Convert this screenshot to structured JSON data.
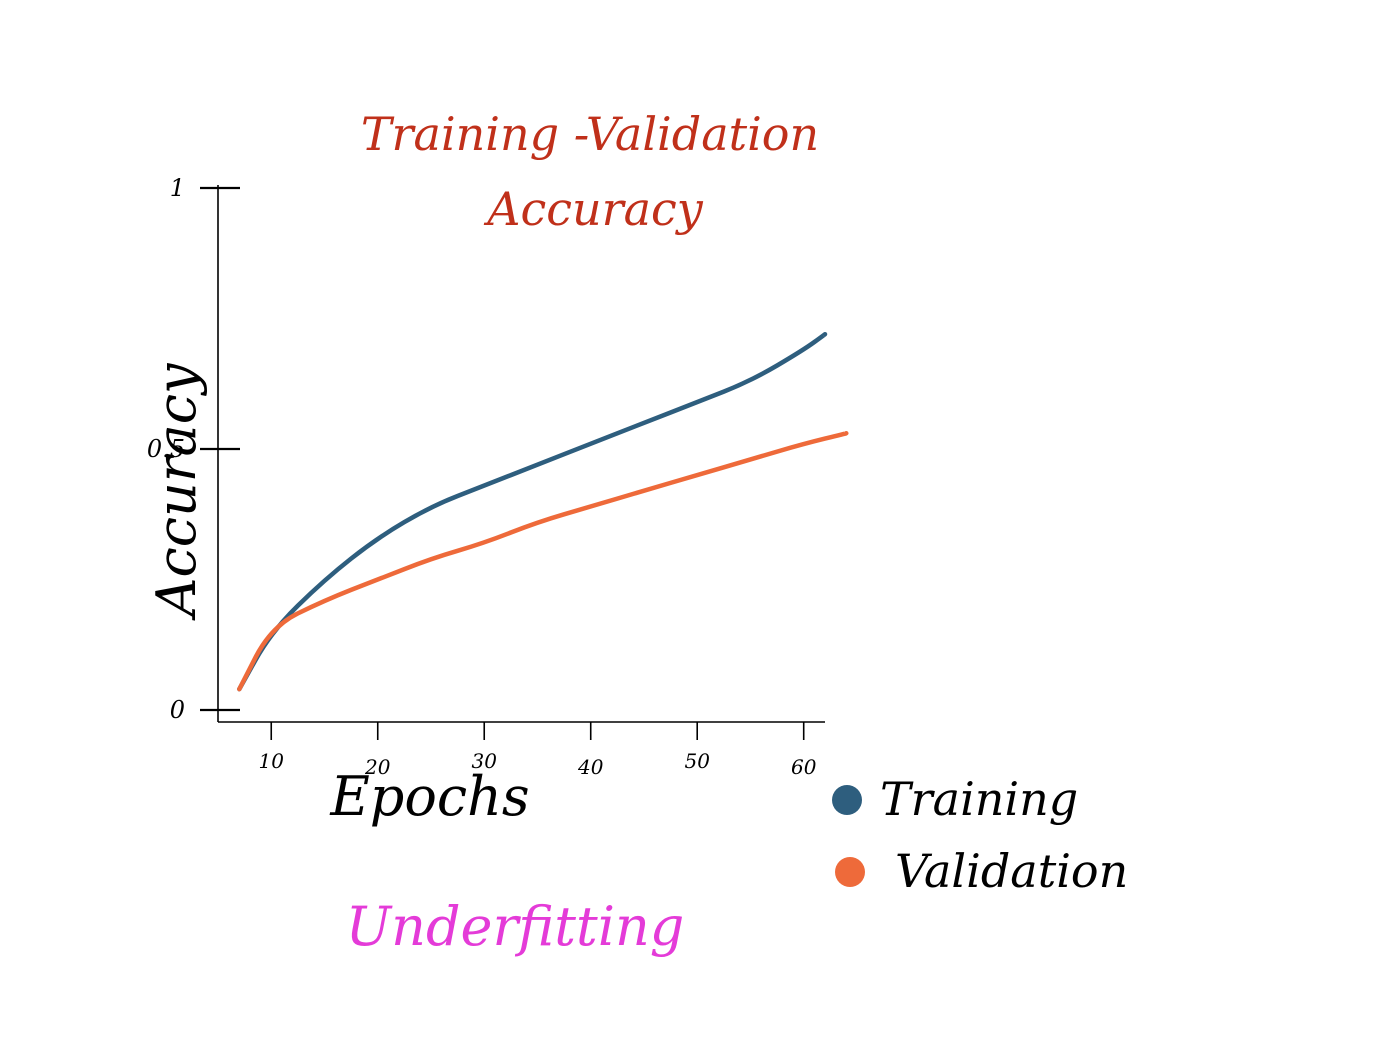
{
  "chart_data": {
    "type": "line",
    "title": [
      "Training -Validation",
      "Accuracy"
    ],
    "xlabel": "Epochs",
    "ylabel": "Accuracy",
    "xlim": [
      5,
      62
    ],
    "ylim": [
      0,
      1
    ],
    "x_ticks": [
      10,
      20,
      30,
      40,
      50,
      60
    ],
    "y_ticks": [
      {
        "value": 0,
        "label": "0"
      },
      {
        "value": 0.5,
        "label": "0.5"
      },
      {
        "value": 1,
        "label": "1"
      }
    ],
    "grid": false,
    "legend": "bottom-right",
    "series": [
      {
        "name": "Training",
        "color": "#2e5e7e",
        "x": [
          7,
          10,
          15,
          20,
          25,
          30,
          35,
          40,
          45,
          50,
          55,
          60,
          62
        ],
        "y": [
          0.04,
          0.15,
          0.25,
          0.33,
          0.39,
          0.43,
          0.47,
          0.51,
          0.55,
          0.59,
          0.63,
          0.69,
          0.72
        ]
      },
      {
        "name": "Validation",
        "color": "#ee6a3a",
        "x": [
          7,
          10,
          15,
          20,
          25,
          30,
          35,
          40,
          45,
          50,
          55,
          60,
          64
        ],
        "y": [
          0.04,
          0.16,
          0.21,
          0.25,
          0.29,
          0.32,
          0.36,
          0.39,
          0.42,
          0.45,
          0.48,
          0.51,
          0.53
        ]
      }
    ],
    "annotation": "Underfitting"
  }
}
